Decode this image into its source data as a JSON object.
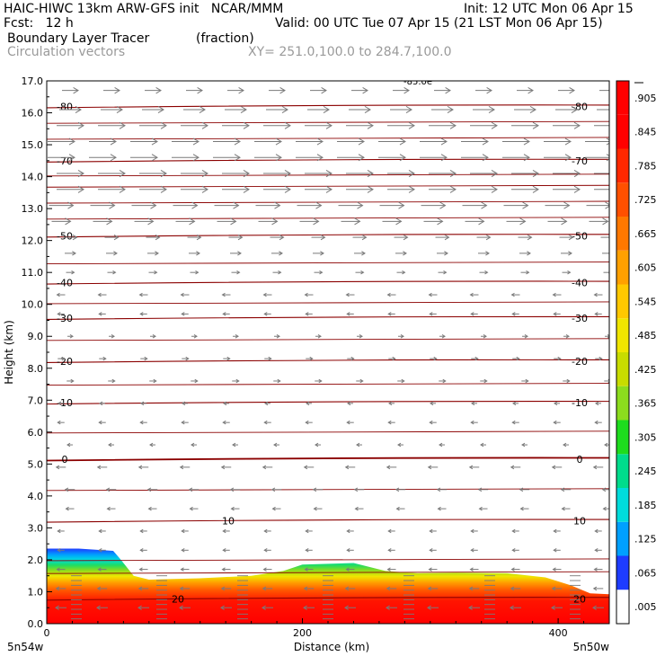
{
  "header": {
    "title_left": "HAIC-HIWC 13km ARW-GFS init   NCAR/MMM",
    "init": "Init: 12 UTC Mon 06 Apr 15",
    "fcst": "Fcst:   12 h",
    "valid": "Valid: 00 UTC Tue 07 Apr 15 (21 LST Mon 06 Apr 15)",
    "field": "Boundary Layer Tracer",
    "field_units": "(fraction)",
    "vectors": "Circulation vectors",
    "xy_range": "XY= 251.0,100.0 to 284.7,100.0"
  },
  "chart_data": {
    "type": "heatmap",
    "xlabel": "Distance (km)",
    "ylabel": "Height (km)",
    "xlim": [
      0,
      440
    ],
    "ylim": [
      0,
      17
    ],
    "x_ticks": [
      0,
      200,
      400
    ],
    "y_ticks": [
      "0.0",
      "1.0",
      "2.0",
      "3.0",
      "4.0",
      "5.0",
      "6.0",
      "7.0",
      "8.0",
      "9.0",
      "10.0",
      "11.0",
      "12.0",
      "13.0",
      "14.0",
      "15.0",
      "16.0",
      "17.0"
    ],
    "x_end_labels": {
      "left": "5n54w",
      "right": "5n50w"
    },
    "colorbar": {
      "labels": [
        ".005",
        ".065",
        ".125",
        ".185",
        ".245",
        ".305",
        ".365",
        ".425",
        ".485",
        ".545",
        ".605",
        ".665",
        ".725",
        ".785",
        ".845",
        ".905"
      ],
      "colors": [
        "#ffffff",
        "#1e3cff",
        "#00a0ff",
        "#00dcdc",
        "#00dc8c",
        "#1edc1e",
        "#8cdc1e",
        "#c8dc00",
        "#f0e600",
        "#ffc800",
        "#ffa000",
        "#ff7800",
        "#ff5000",
        "#ff2800",
        "#ff0000",
        "#ff0000"
      ]
    },
    "tracer_top_km": [
      [
        0,
        2.35
      ],
      [
        25,
        2.35
      ],
      [
        52,
        2.28
      ],
      [
        58,
        2.0
      ],
      [
        68,
        1.5
      ],
      [
        80,
        1.38
      ],
      [
        120,
        1.42
      ],
      [
        160,
        1.5
      ],
      [
        185,
        1.65
      ],
      [
        200,
        1.85
      ],
      [
        240,
        1.9
      ],
      [
        265,
        1.65
      ],
      [
        290,
        1.58
      ],
      [
        320,
        1.6
      ],
      [
        360,
        1.58
      ],
      [
        390,
        1.45
      ],
      [
        410,
        1.2
      ],
      [
        425,
        0.95
      ],
      [
        440,
        0.92
      ]
    ],
    "temperature_contours": [
      {
        "label": "20",
        "y": 0.78
      },
      {
        "label": "10",
        "y": 3.22
      },
      {
        "label": "0",
        "y": 5.15
      },
      {
        "label": "-10",
        "y": 6.92
      },
      {
        "label": "-20",
        "y": 8.22
      },
      {
        "label": "-30",
        "y": 9.57
      },
      {
        "label": "-40",
        "y": 10.68
      },
      {
        "label": "-50",
        "y": 12.15
      },
      {
        "label": "-70",
        "y": 14.5
      },
      {
        "label": "-80",
        "y": 16.2
      }
    ],
    "top_contour_label": "-85.0e",
    "vector_levels": [
      {
        "y": 16.7,
        "u": 0.6
      },
      {
        "y": 16.1,
        "u": 0.8
      },
      {
        "y": 15.6,
        "u": 1.0
      },
      {
        "y": 15.1,
        "u": 1.0
      },
      {
        "y": 14.6,
        "u": 1.0
      },
      {
        "y": 14.1,
        "u": 1.0
      },
      {
        "y": 13.6,
        "u": 1.0
      },
      {
        "y": 13.1,
        "u": 0.9
      },
      {
        "y": 12.6,
        "u": 0.7
      },
      {
        "y": 12.1,
        "u": 0.5
      },
      {
        "y": 11.6,
        "u": 0.4
      },
      {
        "y": 11.0,
        "u": 0.3
      },
      {
        "y": 10.3,
        "u": -0.3
      },
      {
        "y": 9.7,
        "u": -0.25
      },
      {
        "y": 9.0,
        "u": 0.2
      },
      {
        "y": 8.3,
        "u": 0.25
      },
      {
        "y": 7.6,
        "u": 0.25
      },
      {
        "y": 6.9,
        "u": -0.2
      },
      {
        "y": 6.3,
        "u": -0.25
      },
      {
        "y": 5.6,
        "u": -0.2
      },
      {
        "y": 4.9,
        "u": -0.35
      },
      {
        "y": 4.2,
        "u": -0.35
      },
      {
        "y": 3.6,
        "u": -0.3
      },
      {
        "y": 2.9,
        "u": -0.25
      },
      {
        "y": 2.3,
        "u": -0.25
      },
      {
        "y": 1.7,
        "u": -0.3
      },
      {
        "y": 1.1,
        "u": -0.35
      },
      {
        "y": 0.5,
        "u": -0.4
      }
    ]
  }
}
